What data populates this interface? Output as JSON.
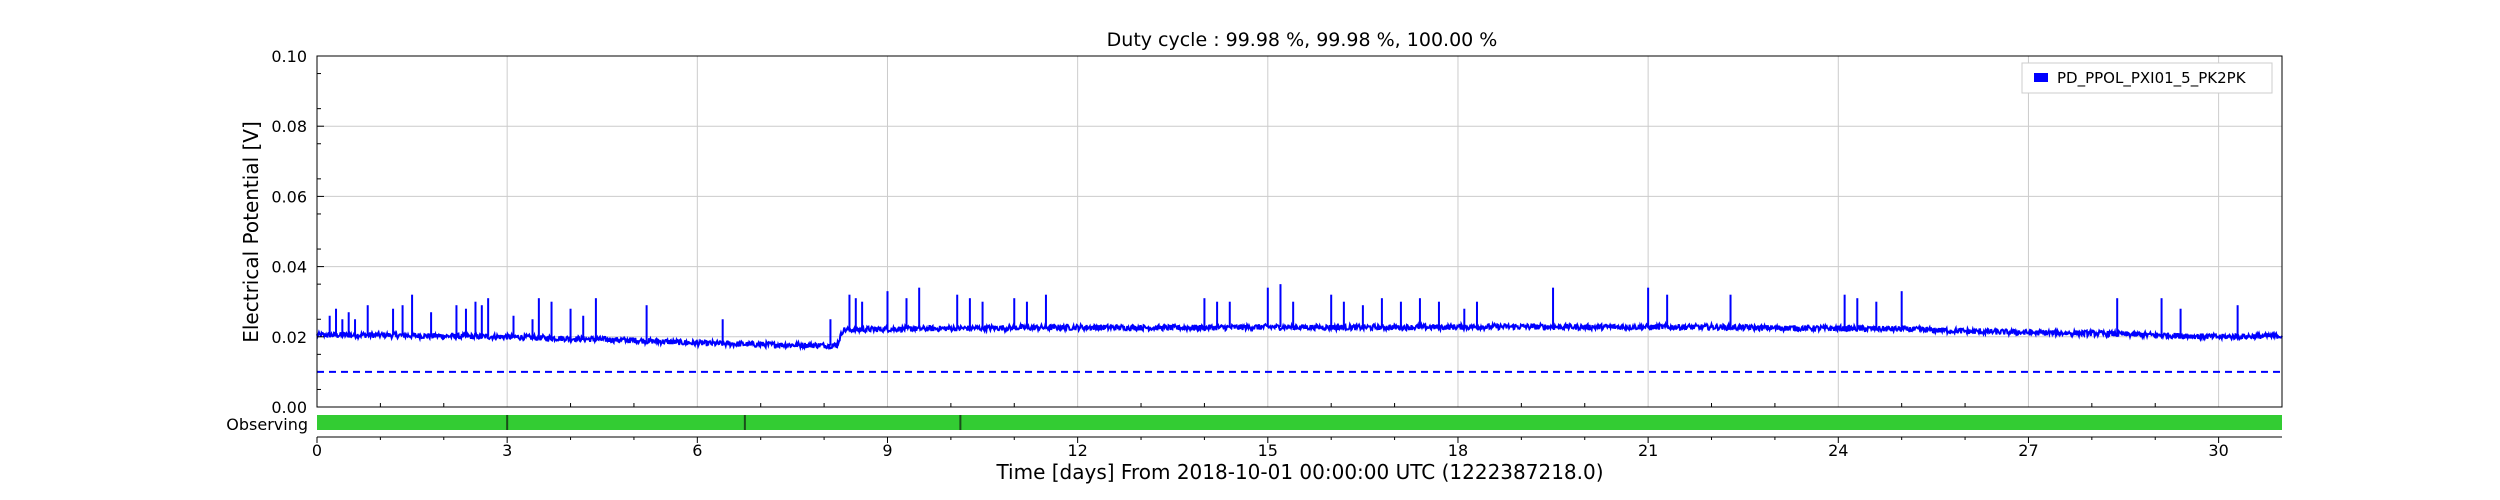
{
  "chart_data": {
    "type": "line",
    "title": "Duty cycle : 99.98 %, 99.98 %, 100.00 %",
    "xlabel": "Time [days] From 2018-10-01 00:00:00 UTC (1222387218.0)",
    "ylabel": "Electrical Potential [V]",
    "xlim": [
      0,
      31
    ],
    "ylim": [
      0,
      0.1
    ],
    "xticks": [
      "0",
      "3",
      "6",
      "9",
      "12",
      "15",
      "18",
      "21",
      "24",
      "27",
      "30"
    ],
    "yticks": [
      "0.00",
      "0.02",
      "0.04",
      "0.06",
      "0.08",
      "0.10"
    ],
    "grid": true,
    "legend_position": "top-right",
    "series": [
      {
        "name": "PD_PPOL_PXI01_5_PK2PK",
        "color": "#0000ff",
        "baseline": [
          [
            0,
            0.0205
          ],
          [
            1,
            0.0205
          ],
          [
            2,
            0.0202
          ],
          [
            3,
            0.02
          ],
          [
            4,
            0.0195
          ],
          [
            5,
            0.019
          ],
          [
            6,
            0.0182
          ],
          [
            7,
            0.0178
          ],
          [
            8.2,
            0.0175
          ],
          [
            8.3,
            0.022
          ],
          [
            9,
            0.0222
          ],
          [
            10,
            0.0224
          ],
          [
            11,
            0.0226
          ],
          [
            12,
            0.0227
          ],
          [
            13,
            0.0226
          ],
          [
            14,
            0.0226
          ],
          [
            15,
            0.0228
          ],
          [
            16,
            0.0227
          ],
          [
            17,
            0.0227
          ],
          [
            18,
            0.0228
          ],
          [
            19,
            0.0229
          ],
          [
            20,
            0.0228
          ],
          [
            21,
            0.0228
          ],
          [
            22,
            0.0228
          ],
          [
            23,
            0.0225
          ],
          [
            24,
            0.0224
          ],
          [
            25,
            0.0222
          ],
          [
            26,
            0.0216
          ],
          [
            27,
            0.0212
          ],
          [
            28,
            0.021
          ],
          [
            29,
            0.0205
          ],
          [
            30,
            0.02
          ],
          [
            31,
            0.0203
          ]
        ],
        "spikes": [
          [
            0.2,
            0.026
          ],
          [
            0.3,
            0.028
          ],
          [
            0.4,
            0.025
          ],
          [
            0.5,
            0.027
          ],
          [
            0.6,
            0.025
          ],
          [
            0.8,
            0.029
          ],
          [
            1.2,
            0.028
          ],
          [
            1.35,
            0.029
          ],
          [
            1.5,
            0.032
          ],
          [
            1.8,
            0.027
          ],
          [
            2.2,
            0.029
          ],
          [
            2.35,
            0.028
          ],
          [
            2.5,
            0.03
          ],
          [
            2.6,
            0.029
          ],
          [
            2.7,
            0.031
          ],
          [
            3.1,
            0.026
          ],
          [
            3.4,
            0.025
          ],
          [
            3.5,
            0.031
          ],
          [
            3.7,
            0.03
          ],
          [
            4.0,
            0.028
          ],
          [
            4.2,
            0.026
          ],
          [
            4.4,
            0.031
          ],
          [
            5.2,
            0.029
          ],
          [
            6.4,
            0.025
          ],
          [
            8.1,
            0.025
          ],
          [
            8.4,
            0.032
          ],
          [
            8.5,
            0.031
          ],
          [
            8.6,
            0.03
          ],
          [
            9.0,
            0.033
          ],
          [
            9.3,
            0.031
          ],
          [
            9.5,
            0.034
          ],
          [
            10.1,
            0.032
          ],
          [
            10.3,
            0.031
          ],
          [
            10.5,
            0.03
          ],
          [
            11.0,
            0.031
          ],
          [
            11.2,
            0.03
          ],
          [
            11.5,
            0.032
          ],
          [
            14.0,
            0.031
          ],
          [
            14.2,
            0.03
          ],
          [
            14.4,
            0.03
          ],
          [
            15.0,
            0.034
          ],
          [
            15.2,
            0.035
          ],
          [
            15.4,
            0.03
          ],
          [
            16.0,
            0.032
          ],
          [
            16.2,
            0.03
          ],
          [
            16.5,
            0.029
          ],
          [
            16.8,
            0.031
          ],
          [
            17.1,
            0.03
          ],
          [
            17.4,
            0.031
          ],
          [
            17.7,
            0.03
          ],
          [
            18.1,
            0.028
          ],
          [
            18.3,
            0.03
          ],
          [
            19.5,
            0.034
          ],
          [
            21.0,
            0.034
          ],
          [
            21.3,
            0.032
          ],
          [
            22.3,
            0.032
          ],
          [
            24.1,
            0.032
          ],
          [
            24.3,
            0.031
          ],
          [
            24.6,
            0.03
          ],
          [
            25.0,
            0.033
          ],
          [
            28.4,
            0.031
          ],
          [
            29.1,
            0.031
          ],
          [
            29.4,
            0.028
          ],
          [
            30.3,
            0.029
          ]
        ]
      }
    ],
    "threshold": {
      "value": 0.01,
      "color": "#0000ff",
      "style": "dashed"
    },
    "observing": {
      "label": "Observing",
      "color": "#33cc33",
      "gaps": [
        3.0,
        6.75,
        10.15
      ]
    }
  }
}
